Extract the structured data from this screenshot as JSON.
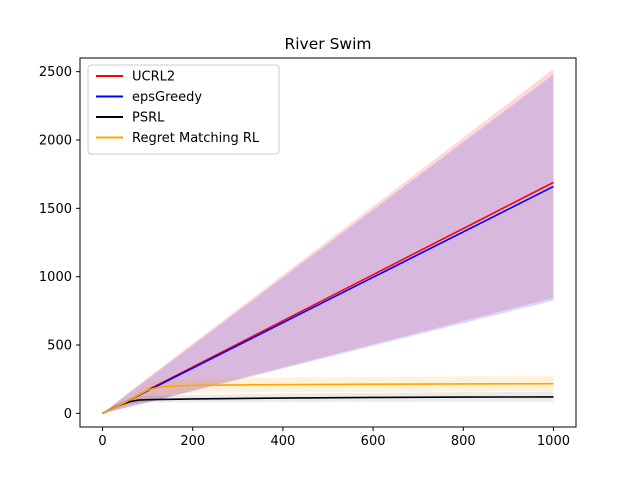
{
  "chart_data": {
    "type": "line",
    "title": "River Swim",
    "xlabel": "",
    "ylabel": "",
    "xlim": [
      -50,
      1050
    ],
    "ylim": [
      -100,
      2600
    ],
    "x_ticks": [
      0,
      200,
      400,
      600,
      800,
      1000
    ],
    "y_ticks": [
      0,
      500,
      1000,
      1500,
      2000,
      2500
    ],
    "grid": false,
    "legend_position": "top-left",
    "series": [
      {
        "name": "UCRL2",
        "color": "#ff0000",
        "x": [
          0,
          50,
          100,
          1000
        ],
        "y": [
          0,
          80,
          170,
          1690
        ],
        "band_lower": [
          0,
          40,
          80,
          845
        ],
        "band_upper": [
          0,
          130,
          260,
          2520
        ],
        "band_color": "#ff0000",
        "band_opacity": 0.15
      },
      {
        "name": "epsGreedy",
        "color": "#0000ff",
        "x": [
          0,
          50,
          100,
          1000
        ],
        "y": [
          0,
          80,
          165,
          1660
        ],
        "band_lower": [
          0,
          40,
          80,
          825
        ],
        "band_upper": [
          0,
          130,
          250,
          2480
        ],
        "band_color": "#0000ff",
        "band_opacity": 0.15
      },
      {
        "name": "PSRL",
        "color": "#000000",
        "x": [
          0,
          30,
          60,
          80,
          100,
          200,
          400,
          600,
          800,
          1000
        ],
        "y": [
          0,
          50,
          85,
          97,
          100,
          105,
          112,
          116,
          119,
          120
        ],
        "band_lower": [
          0,
          35,
          65,
          75,
          78,
          80,
          82,
          84,
          85,
          86
        ],
        "band_upper": [
          0,
          65,
          110,
          125,
          130,
          135,
          145,
          150,
          155,
          158
        ],
        "band_color": "#000000",
        "band_opacity": 0.08
      },
      {
        "name": "Regret Matching RL",
        "color": "#ffa500",
        "x": [
          0,
          50,
          100,
          130,
          200,
          400,
          600,
          800,
          1000
        ],
        "y": [
          0,
          80,
          170,
          195,
          205,
          210,
          213,
          215,
          217
        ],
        "band_lower": [
          0,
          55,
          120,
          140,
          150,
          155,
          158,
          160,
          162
        ],
        "band_upper": [
          0,
          105,
          220,
          245,
          255,
          262,
          266,
          270,
          272
        ],
        "band_color": "#ffa500",
        "band_opacity": 0.15
      }
    ]
  }
}
